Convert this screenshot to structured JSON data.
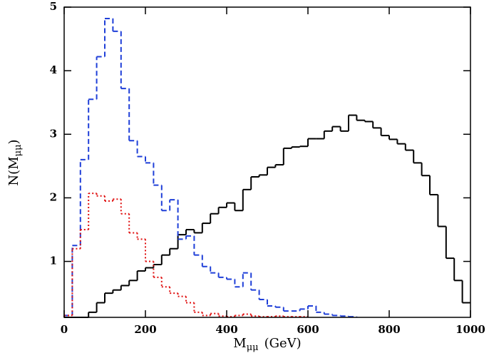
{
  "chart_data": {
    "type": "histogram",
    "xlabel": {
      "main": "M",
      "sub": "μμ",
      "unit": "(GeV)"
    },
    "ylabel": {
      "main": "N(M",
      "sub": "μμ",
      "end": ")"
    },
    "bins": [
      0,
      20,
      40,
      60,
      80,
      100,
      120,
      140,
      160,
      180,
      200,
      220,
      240,
      260,
      280,
      300,
      320,
      340,
      360,
      380,
      400,
      420,
      440,
      460,
      480,
      500,
      520,
      540,
      560,
      580,
      600,
      620,
      640,
      660,
      680,
      700,
      720,
      740,
      760,
      780,
      800,
      820,
      840,
      860,
      880,
      900,
      920,
      940,
      960,
      980,
      1000
    ],
    "series": [
      {
        "color": "#000000",
        "line_style": "solid",
        "values": [
          0.12,
          0.12,
          0.12,
          0.2,
          0.35,
          0.5,
          0.55,
          0.62,
          0.7,
          0.85,
          0.9,
          0.95,
          1.1,
          1.2,
          1.42,
          1.5,
          1.45,
          1.6,
          1.75,
          1.85,
          1.92,
          1.8,
          2.13,
          2.33,
          2.36,
          2.48,
          2.52,
          2.78,
          2.8,
          2.81,
          2.93,
          2.93,
          3.05,
          3.12,
          3.05,
          3.3,
          3.22,
          3.2,
          3.1,
          2.98,
          2.92,
          2.85,
          2.75,
          2.55,
          2.35,
          2.05,
          1.55,
          1.05,
          0.7,
          0.35
        ]
      },
      {
        "color": "#1f3fd8",
        "line_style": "dashed",
        "values": [
          0.15,
          1.25,
          2.6,
          3.55,
          4.22,
          4.82,
          4.62,
          3.72,
          2.9,
          2.65,
          2.55,
          2.2,
          1.8,
          1.97,
          1.35,
          1.4,
          1.1,
          0.92,
          0.82,
          0.75,
          0.72,
          0.6,
          0.82,
          0.55,
          0.4,
          0.3,
          0.28,
          0.22,
          0.22,
          0.25,
          0.3,
          0.2,
          0.17,
          0.15,
          0.14,
          0.13,
          null,
          null,
          null,
          null,
          null,
          null,
          null,
          null,
          null,
          null,
          null,
          null,
          null,
          null
        ]
      },
      {
        "color": "#e01010",
        "line_style": "dotted",
        "values": [
          0.15,
          1.2,
          1.5,
          2.07,
          2.03,
          1.95,
          1.98,
          1.75,
          1.45,
          1.35,
          1.0,
          0.75,
          0.6,
          0.5,
          0.45,
          0.35,
          0.2,
          0.15,
          0.18,
          0.14,
          0.13,
          0.15,
          0.17,
          0.14,
          0.13,
          0.13,
          0.14,
          0.13,
          0.13,
          0.13,
          null,
          null,
          null,
          null,
          null,
          null,
          null,
          null,
          null,
          null,
          null,
          null,
          null,
          null,
          null,
          null,
          null,
          null,
          null,
          null
        ]
      }
    ],
    "xlim": [
      0,
      1000
    ],
    "xticks": [
      0,
      200,
      400,
      600,
      800,
      1000
    ],
    "ylim": [
      0.12,
      5
    ],
    "yticks": [
      1,
      2,
      3,
      4,
      5
    ]
  }
}
